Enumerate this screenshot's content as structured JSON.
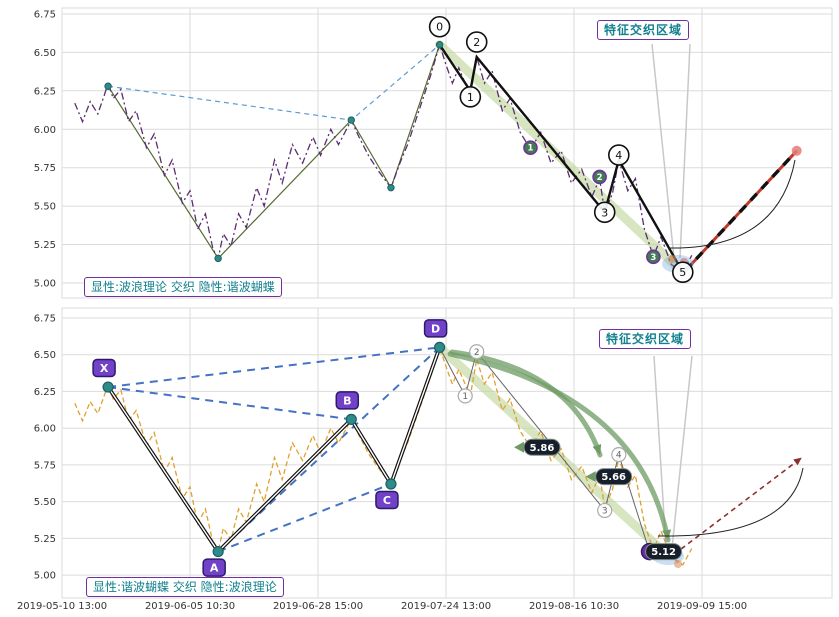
{
  "colors": {
    "purple_accent": "#7030A0",
    "teal_text": "#12808E",
    "grid": "#DBDBDB",
    "axis_text": "#333333",
    "price_top": "#5B2C6F",
    "price_bottom": "#E0A030",
    "blue_dash": "#4472C4",
    "blue_dash_light": "#5B9BD5",
    "olive": "#556B2F",
    "wave_black": "#111111",
    "green_band": "#BCD698",
    "green_arrow": "#6D9B63",
    "green_line": "#3A7D44",
    "bubble_bg": "#17202A",
    "bubble_text": "#FFFFFF",
    "pivot_dot": "#2E8B8B",
    "pivot_box": "#7141C8",
    "pivot_box_border": "#2D1B69",
    "projection_red": "#C0392B",
    "projection_dark_red": "#8B3030",
    "sub_marker_fill": "#3F7D4E",
    "convergence": "#6EA0D7"
  },
  "chart_data": {
    "type": "line",
    "x_ticks": [
      "2019-05-10 13:00",
      "2019-06-05 10:30",
      "2019-06-28 15:00",
      "2019-07-24 13:00",
      "2019-08-16 10:30",
      "2019-09-09 15:00"
    ],
    "y_ticks": [
      6.75,
      6.5,
      6.25,
      6.0,
      5.75,
      5.5,
      5.25,
      5.0
    ],
    "ylim": [
      4.93,
      6.85
    ],
    "x_unit": "tick-index",
    "price_series": [
      [
        0.1,
        6.17
      ],
      [
        0.16,
        6.05
      ],
      [
        0.22,
        6.18
      ],
      [
        0.28,
        6.1
      ],
      [
        0.33,
        6.22
      ],
      [
        0.36,
        6.3
      ],
      [
        0.4,
        6.2
      ],
      [
        0.46,
        6.26
      ],
      [
        0.52,
        6.05
      ],
      [
        0.58,
        6.12
      ],
      [
        0.66,
        5.88
      ],
      [
        0.72,
        5.97
      ],
      [
        0.8,
        5.7
      ],
      [
        0.86,
        5.8
      ],
      [
        0.94,
        5.52
      ],
      [
        1.0,
        5.6
      ],
      [
        1.06,
        5.35
      ],
      [
        1.12,
        5.45
      ],
      [
        1.18,
        5.22
      ],
      [
        1.22,
        5.16
      ],
      [
        1.26,
        5.32
      ],
      [
        1.32,
        5.24
      ],
      [
        1.38,
        5.45
      ],
      [
        1.44,
        5.36
      ],
      [
        1.52,
        5.62
      ],
      [
        1.58,
        5.5
      ],
      [
        1.66,
        5.8
      ],
      [
        1.72,
        5.65
      ],
      [
        1.8,
        5.9
      ],
      [
        1.88,
        5.78
      ],
      [
        1.96,
        5.95
      ],
      [
        2.02,
        5.83
      ],
      [
        2.1,
        6.0
      ],
      [
        2.16,
        5.9
      ],
      [
        2.26,
        6.06
      ],
      [
        2.32,
        5.95
      ],
      [
        2.4,
        5.82
      ],
      [
        2.48,
        5.72
      ],
      [
        2.57,
        5.62
      ],
      [
        2.64,
        5.78
      ],
      [
        2.7,
        5.9
      ],
      [
        2.76,
        6.05
      ],
      [
        2.82,
        6.2
      ],
      [
        2.88,
        6.35
      ],
      [
        2.95,
        6.55
      ],
      [
        3.0,
        6.42
      ],
      [
        3.05,
        6.3
      ],
      [
        3.1,
        6.4
      ],
      [
        3.19,
        6.22
      ],
      [
        3.24,
        6.47
      ],
      [
        3.3,
        6.3
      ],
      [
        3.36,
        6.38
      ],
      [
        3.44,
        6.12
      ],
      [
        3.5,
        6.2
      ],
      [
        3.58,
        5.98
      ],
      [
        3.66,
        5.87
      ],
      [
        3.74,
        5.98
      ],
      [
        3.82,
        5.78
      ],
      [
        3.9,
        5.86
      ],
      [
        3.98,
        5.65
      ],
      [
        4.06,
        5.74
      ],
      [
        4.14,
        5.56
      ],
      [
        4.2,
        5.68
      ],
      [
        4.24,
        5.46
      ],
      [
        4.3,
        5.58
      ],
      [
        4.35,
        5.8
      ],
      [
        4.42,
        5.6
      ],
      [
        4.48,
        5.68
      ],
      [
        4.55,
        5.35
      ],
      [
        4.62,
        5.17
      ],
      [
        4.68,
        5.3
      ],
      [
        4.76,
        5.12
      ],
      [
        4.85,
        5.07
      ],
      [
        4.92,
        5.18
      ]
    ],
    "harmonic_pivots": [
      {
        "label": "X",
        "t": 0.36,
        "price": 6.28
      },
      {
        "label": "A",
        "t": 1.22,
        "price": 5.16
      },
      {
        "label": "B",
        "t": 2.26,
        "price": 6.06
      },
      {
        "label": "C",
        "t": 2.57,
        "price": 5.62
      },
      {
        "label": "D",
        "t": 2.95,
        "price": 6.55
      }
    ],
    "wave_pivots": [
      {
        "label": "0",
        "t": 2.95,
        "price": 6.55
      },
      {
        "label": "1",
        "t": 3.19,
        "price": 6.25
      },
      {
        "label": "2",
        "t": 3.24,
        "price": 6.47
      },
      {
        "label": "3",
        "t": 4.24,
        "price": 5.46
      },
      {
        "label": "4",
        "t": 4.35,
        "price": 5.8
      },
      {
        "label": "5",
        "t": 4.85,
        "price": 5.07
      }
    ],
    "projection": {
      "top": {
        "from": [
          4.87,
          5.08
        ],
        "to": [
          5.74,
          5.86
        ]
      },
      "bottom": {
        "from": [
          4.78,
          5.14
        ],
        "to": [
          5.78,
          5.8
        ]
      }
    },
    "panels": [
      {
        "caption": "显性:波浪理论 交织 隐性:谐波蝴蝶",
        "region_label": "特征交织区域",
        "explicit": "waves",
        "sub_markers": [
          {
            "label": "1",
            "t": 3.66,
            "price": 5.88
          },
          {
            "label": "2",
            "t": 4.2,
            "price": 5.69
          },
          {
            "label": "3",
            "t": 4.62,
            "price": 5.17
          }
        ]
      },
      {
        "caption": "显性:谐波蝴蝶 交织 隐性:波浪理论",
        "region_label": "特征交织区域",
        "explicit": "harmonic",
        "price_bubbles": [
          {
            "text": "5.86",
            "t": 3.75,
            "price": 5.87
          },
          {
            "text": "5.66",
            "t": 4.31,
            "price": 5.67
          },
          {
            "text": "5.12",
            "t": 4.7,
            "price": 5.16
          }
        ],
        "wave_marker_circles": [
          {
            "label": "1",
            "t": 3.15,
            "price": 6.22
          },
          {
            "label": "2",
            "t": 3.24,
            "price": 6.52
          },
          {
            "label": "3",
            "t": 4.24,
            "price": 5.44
          },
          {
            "label": "4",
            "t": 4.35,
            "price": 5.82
          },
          {
            "label": "5",
            "t": 4.59,
            "price": 5.16
          }
        ]
      }
    ]
  }
}
